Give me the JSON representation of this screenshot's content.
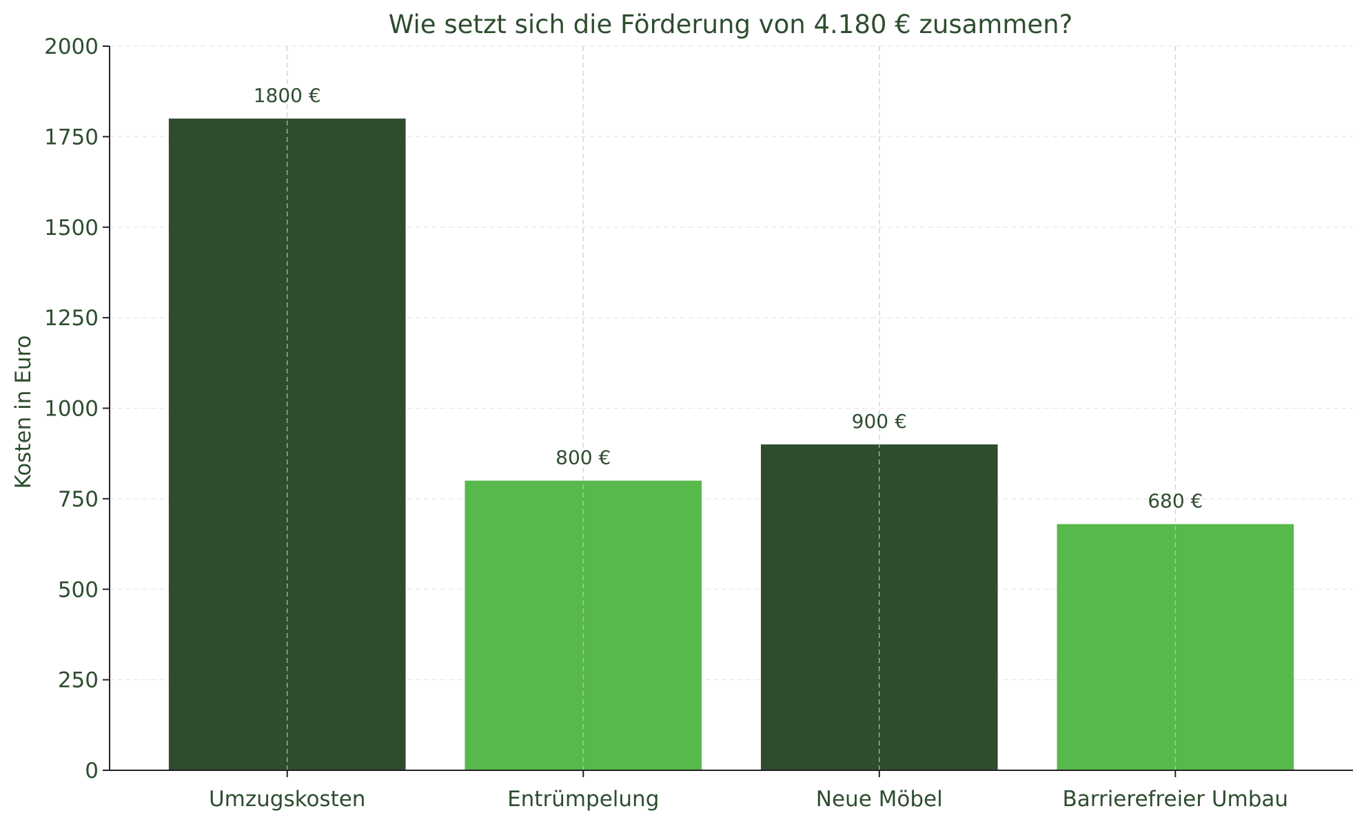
{
  "chart_data": {
    "type": "bar",
    "title": "Wie setzt sich die Förderung von 4.180 € zusammen?",
    "xlabel": "",
    "ylabel": "Kosten in Euro",
    "categories": [
      "Umzugskosten",
      "Entrümpelung",
      "Neue Möbel",
      "Barrierefreier Umbau"
    ],
    "values": [
      1800,
      800,
      900,
      680
    ],
    "data_labels": [
      "1800 €",
      "800 €",
      "900 €",
      "680 €"
    ],
    "bar_colors": [
      "#2e4d2f",
      "#57b84b",
      "#2e4d2f",
      "#57b84b"
    ],
    "ylim": [
      0,
      2000
    ],
    "yticks": [
      0,
      250,
      500,
      750,
      1000,
      1250,
      1500,
      1750,
      2000
    ],
    "ytick_labels": [
      "0",
      "250",
      "500",
      "750",
      "1000",
      "1250",
      "1500",
      "1750",
      "2000"
    ],
    "grid": true,
    "text_color": "#2e4d2f",
    "grid_color": "#d9d9d9"
  }
}
